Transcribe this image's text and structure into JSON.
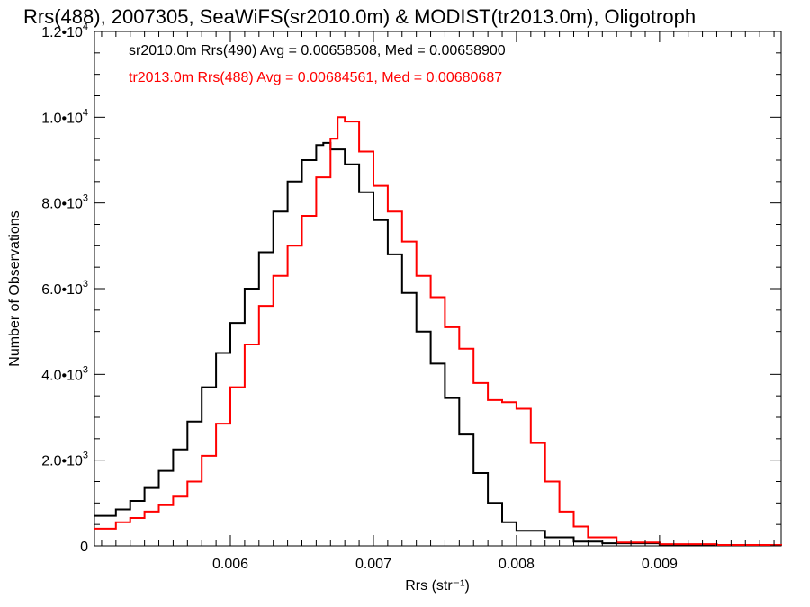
{
  "chart_data": {
    "type": "line",
    "title": "Rrs(488), 2007305, SeaWiFS(sr2010.0m) & MODIST(tr2013.0m), Oligotroph",
    "xlabel": "Rrs (str⁻¹)",
    "ylabel": "Number of Observations",
    "xlim": [
      0.00505,
      0.00985
    ],
    "ylim": [
      0,
      12000
    ],
    "x_ticks": [
      {
        "value": 0.006,
        "label": "0.006"
      },
      {
        "value": 0.007,
        "label": "0.007"
      },
      {
        "value": 0.008,
        "label": "0.008"
      },
      {
        "value": 0.009,
        "label": "0.009"
      }
    ],
    "y_ticks": [
      {
        "value": 0,
        "mant": "0",
        "exp": ""
      },
      {
        "value": 2000,
        "mant": "2.0•10",
        "exp": "3"
      },
      {
        "value": 4000,
        "mant": "4.0•10",
        "exp": "3"
      },
      {
        "value": 6000,
        "mant": "6.0•10",
        "exp": "3"
      },
      {
        "value": 8000,
        "mant": "8.0•10",
        "exp": "3"
      },
      {
        "value": 10000,
        "mant": "1.0•10",
        "exp": "4"
      },
      {
        "value": 12000,
        "mant": "1.2•10",
        "exp": "4"
      }
    ],
    "grid": false,
    "legend_position": "top-left",
    "series": [
      {
        "name": "sr2010.0m Rrs(490) Avg = 0.00658508, Med = 0.00658900",
        "color": "#000000",
        "points": [
          [
            0.00505,
            700
          ],
          [
            0.0052,
            850
          ],
          [
            0.0053,
            1050
          ],
          [
            0.0054,
            1350
          ],
          [
            0.0055,
            1750
          ],
          [
            0.0056,
            2250
          ],
          [
            0.0057,
            2900
          ],
          [
            0.0058,
            3700
          ],
          [
            0.0059,
            4500
          ],
          [
            0.006,
            5200
          ],
          [
            0.0061,
            6000
          ],
          [
            0.0062,
            6850
          ],
          [
            0.0063,
            7800
          ],
          [
            0.0064,
            8500
          ],
          [
            0.0065,
            9000
          ],
          [
            0.0066,
            9350
          ],
          [
            0.00665,
            9400
          ],
          [
            0.0067,
            9250
          ],
          [
            0.0068,
            8900
          ],
          [
            0.0069,
            8250
          ],
          [
            0.007,
            7600
          ],
          [
            0.0071,
            6800
          ],
          [
            0.0072,
            5900
          ],
          [
            0.0073,
            5000
          ],
          [
            0.0074,
            4250
          ],
          [
            0.0075,
            3450
          ],
          [
            0.0076,
            2600
          ],
          [
            0.0077,
            1700
          ],
          [
            0.0078,
            1000
          ],
          [
            0.0079,
            550
          ],
          [
            0.008,
            350
          ],
          [
            0.0082,
            200
          ],
          [
            0.0084,
            100
          ],
          [
            0.0086,
            60
          ],
          [
            0.009,
            30
          ],
          [
            0.0094,
            10
          ],
          [
            0.00985,
            5
          ]
        ]
      },
      {
        "name": "tr2013.0m Rrs(488) Avg = 0.00684561, Med = 0.00680687",
        "color": "#ff0000",
        "points": [
          [
            0.00505,
            400
          ],
          [
            0.0052,
            550
          ],
          [
            0.0053,
            650
          ],
          [
            0.0054,
            800
          ],
          [
            0.0055,
            950
          ],
          [
            0.0056,
            1150
          ],
          [
            0.0057,
            1500
          ],
          [
            0.0058,
            2100
          ],
          [
            0.0059,
            2850
          ],
          [
            0.006,
            3700
          ],
          [
            0.0061,
            4700
          ],
          [
            0.0062,
            5600
          ],
          [
            0.0063,
            6300
          ],
          [
            0.0064,
            7000
          ],
          [
            0.0065,
            7700
          ],
          [
            0.0066,
            8600
          ],
          [
            0.0067,
            9500
          ],
          [
            0.00675,
            10000
          ],
          [
            0.0068,
            9900
          ],
          [
            0.0069,
            9200
          ],
          [
            0.007,
            8400
          ],
          [
            0.0071,
            7800
          ],
          [
            0.0072,
            7100
          ],
          [
            0.0073,
            6300
          ],
          [
            0.0074,
            5800
          ],
          [
            0.0075,
            5100
          ],
          [
            0.0076,
            4600
          ],
          [
            0.0077,
            3800
          ],
          [
            0.0078,
            3400
          ],
          [
            0.0079,
            3350
          ],
          [
            0.008,
            3200
          ],
          [
            0.0081,
            2400
          ],
          [
            0.0082,
            1500
          ],
          [
            0.0083,
            800
          ],
          [
            0.0084,
            450
          ],
          [
            0.0085,
            200
          ],
          [
            0.0087,
            80
          ],
          [
            0.009,
            40
          ],
          [
            0.0094,
            20
          ],
          [
            0.00985,
            10
          ]
        ]
      }
    ]
  }
}
